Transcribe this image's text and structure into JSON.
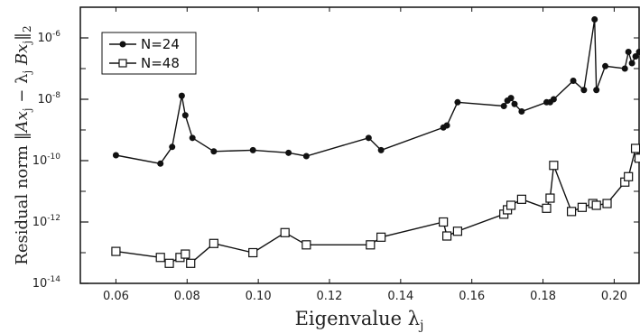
{
  "chart_data": {
    "type": "line",
    "title": "",
    "xlabel": "Eigenvalue λ_j",
    "ylabel": "Residual norm ‖Ax_j − λ_j Bx_j‖_2",
    "xlim": [
      0.05,
      0.207
    ],
    "ylim": [
      1e-14,
      1e-05
    ],
    "yscale": "log",
    "x_ticks": [
      0.06,
      0.08,
      0.1,
      0.12,
      0.14,
      0.16,
      0.18,
      0.2
    ],
    "x_tick_labels": [
      "0.06",
      "0.08",
      "0.10",
      "0.12",
      "0.14",
      "0.16",
      "0.18",
      "0.20"
    ],
    "y_ticks": [
      1e-14,
      1e-12,
      1e-10,
      1e-08,
      1e-06
    ],
    "y_tick_labels": [
      "10",
      "10",
      "10",
      "10",
      "10"
    ],
    "y_tick_exponents": [
      "-14",
      "-12",
      "-10",
      "-8",
      "-6"
    ],
    "grid": false,
    "legend_position": "top-left",
    "series": [
      {
        "name": "N=24",
        "marker": "filled-circle",
        "color": "#111111",
        "x": [
          0.06,
          0.0725,
          0.0758,
          0.0785,
          0.0795,
          0.0815,
          0.0875,
          0.0985,
          0.1085,
          0.1135,
          0.131,
          0.1345,
          0.152,
          0.153,
          0.156,
          0.169,
          0.17,
          0.171,
          0.172,
          0.174,
          0.181,
          0.182,
          0.183,
          0.1885,
          0.1915,
          0.1945,
          0.195,
          0.1975,
          0.203,
          0.204,
          0.205,
          0.206,
          0.207
        ],
        "y": [
          1.5e-10,
          8e-11,
          2.8e-10,
          1.3e-08,
          3e-09,
          5.5e-10,
          2e-10,
          2.2e-10,
          1.8e-10,
          1.4e-10,
          5.5e-10,
          2.2e-10,
          1.2e-09,
          1.4e-09,
          8e-09,
          6e-09,
          9e-09,
          1.1e-08,
          7e-09,
          4e-09,
          8e-09,
          8e-09,
          1e-08,
          4e-08,
          2e-08,
          4e-06,
          2e-08,
          1.2e-07,
          1e-07,
          3.5e-07,
          1.5e-07,
          2.5e-07,
          3.5e-07
        ]
      },
      {
        "name": "N=48",
        "marker": "open-square",
        "color": "#111111",
        "x": [
          0.06,
          0.0725,
          0.075,
          0.078,
          0.0795,
          0.081,
          0.0875,
          0.0985,
          0.1075,
          0.1135,
          0.1315,
          0.1345,
          0.152,
          0.153,
          0.156,
          0.169,
          0.17,
          0.171,
          0.174,
          0.181,
          0.182,
          0.183,
          0.188,
          0.191,
          0.194,
          0.195,
          0.198,
          0.203,
          0.204,
          0.206,
          0.207
        ],
        "y": [
          1.1e-13,
          7e-14,
          4.5e-14,
          7e-14,
          9e-14,
          4.5e-14,
          2e-13,
          1e-13,
          4.5e-13,
          1.8e-13,
          1.8e-13,
          3.2e-13,
          1e-12,
          3.5e-13,
          5e-13,
          1.8e-12,
          2.5e-12,
          3.5e-12,
          5.5e-12,
          2.8e-12,
          6e-12,
          7e-11,
          2.2e-12,
          3e-12,
          4e-12,
          3.5e-12,
          4e-12,
          2e-11,
          3e-11,
          2.5e-10,
          1.2e-10
        ]
      }
    ]
  }
}
